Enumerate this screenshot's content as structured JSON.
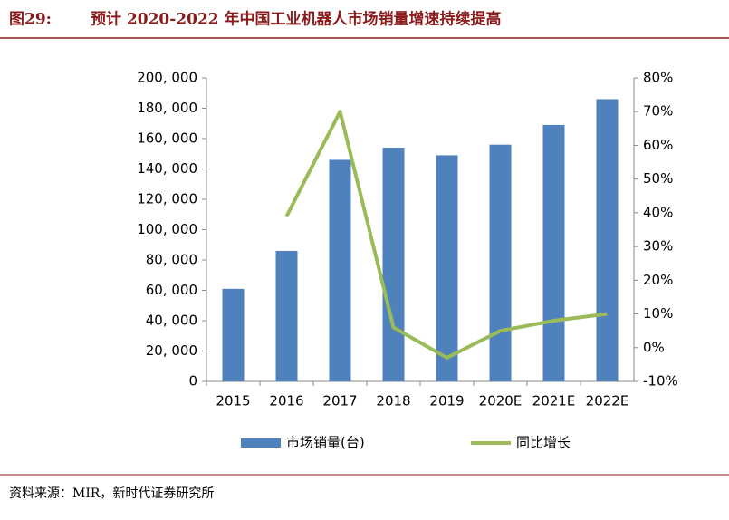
{
  "chart_data": {
    "type": "bar-line",
    "figure_label": "图29:",
    "title": "预计 2020-2022 年中国工业机器人市场销量增速持续提高",
    "source": "资料来源：MIR，新时代证券研究所",
    "categories": [
      "2015",
      "2016",
      "2017",
      "2018",
      "2019",
      "2020E",
      "2021E",
      "2022E"
    ],
    "series": [
      {
        "name": "市场销量(台)",
        "type": "bar",
        "color": "#4f81bd",
        "axis": "y",
        "values": [
          61000,
          86000,
          146000,
          154000,
          149000,
          156000,
          169000,
          186000
        ]
      },
      {
        "name": "同比增长",
        "type": "line",
        "color": "#9bbb59",
        "axis": "y2",
        "values": [
          null,
          39,
          70,
          6,
          -3,
          5,
          8,
          10
        ]
      }
    ],
    "ylim": [
      0,
      200000
    ],
    "yticks": [
      0,
      {
        "value": 20000,
        "label": "20, 000"
      },
      {
        "value": 40000,
        "label": "40, 000"
      },
      {
        "value": 60000,
        "label": "60, 000"
      },
      {
        "value": 80000,
        "label": "80, 000"
      },
      {
        "value": 100000,
        "label": "100, 000"
      },
      {
        "value": 120000,
        "label": "120, 000"
      },
      {
        "value": 140000,
        "label": "140, 000"
      },
      {
        "value": 160000,
        "label": "160, 000"
      },
      {
        "value": 180000,
        "label": "180, 000"
      },
      {
        "value": 200000,
        "label": "200, 000"
      }
    ],
    "y2lim": [
      -10,
      80
    ],
    "y2ticks": [
      {
        "value": -10,
        "label": "-10%"
      },
      {
        "value": 0,
        "label": "0%"
      },
      {
        "value": 10,
        "label": "10%"
      },
      {
        "value": 20,
        "label": "20%"
      },
      {
        "value": 30,
        "label": "30%"
      },
      {
        "value": 40,
        "label": "40%"
      },
      {
        "value": 50,
        "label": "50%"
      },
      {
        "value": 60,
        "label": "60%"
      },
      {
        "value": 70,
        "label": "70%"
      },
      {
        "value": 80,
        "label": "80%"
      }
    ],
    "legend": "bottom"
  }
}
